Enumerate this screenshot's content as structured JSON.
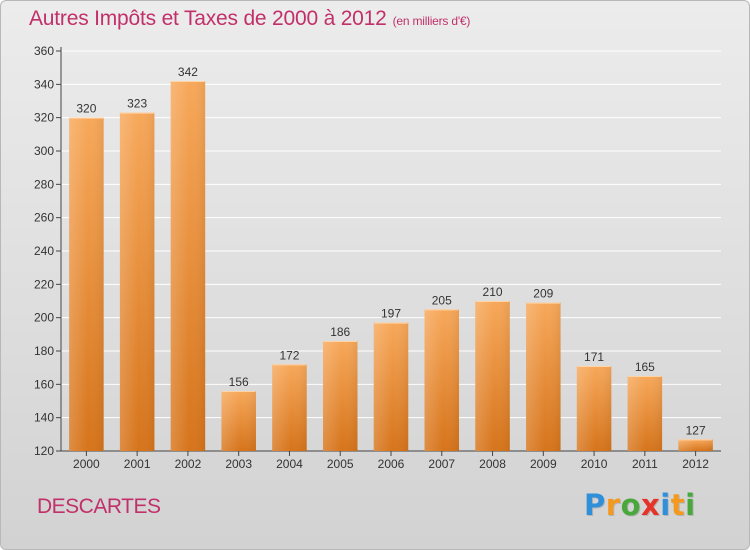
{
  "header": {
    "title": "Autres Impôts et Taxes de 2000 à 2012",
    "subtitle": "(en milliers d'€)"
  },
  "footer": {
    "commune": "DESCARTES",
    "logo_letters": [
      "P",
      "r",
      "o",
      "x",
      "i",
      "t",
      "i"
    ],
    "logo_colors": [
      "#2f8fd8",
      "#f39a1e",
      "#49a83c",
      "#e6332a",
      "#2f8fd8",
      "#f39a1e",
      "#49a83c"
    ]
  },
  "colors": {
    "bar_light": "#f7a85a",
    "bar_dark": "#d6741b",
    "title": "#c2306a",
    "grid": "#ffffff"
  },
  "chart_data": {
    "type": "bar",
    "title": "Autres Impôts et Taxes de 2000 à 2012",
    "subtitle": "(en milliers d'€)",
    "categories": [
      "2000",
      "2001",
      "2002",
      "2003",
      "2004",
      "2005",
      "2006",
      "2007",
      "2008",
      "2009",
      "2010",
      "2011",
      "2012"
    ],
    "values": [
      320,
      323,
      342,
      156,
      172,
      186,
      197,
      205,
      210,
      209,
      171,
      165,
      127
    ],
    "ylim": [
      120,
      360
    ],
    "yticks": [
      120,
      140,
      160,
      180,
      200,
      220,
      240,
      260,
      280,
      300,
      320,
      340,
      360
    ],
    "grid": true,
    "data_labels": true
  }
}
